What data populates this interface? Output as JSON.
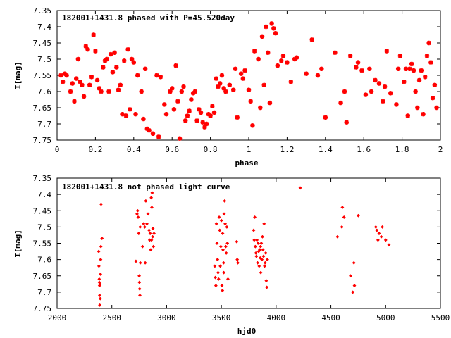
{
  "chart_data": [
    {
      "type": "scatter",
      "title": "182001+1431.8 phased with P=45.520day",
      "xlabel": "phase",
      "ylabel": "I[mag]",
      "xlim": [
        0,
        2
      ],
      "ylim": [
        7.35,
        7.75
      ],
      "y_inverted": true,
      "xticks": [
        "0",
        "0.2",
        "0.4",
        "0.6",
        "0.8",
        "1",
        "1.2",
        "1.4",
        "1.6",
        "1.8",
        "2"
      ],
      "yticks": [
        "7.35",
        "7.4",
        "7.45",
        "7.5",
        "7.55",
        "7.6",
        "7.65",
        "7.7",
        "7.75"
      ],
      "marker": "star",
      "marker_color": "#ff0000",
      "grid": false,
      "points": [
        [
          0.02,
          7.55
        ],
        [
          0.03,
          7.57
        ],
        [
          0.04,
          7.545
        ],
        [
          0.05,
          7.55
        ],
        [
          0.07,
          7.6
        ],
        [
          0.08,
          7.575
        ],
        [
          0.09,
          7.63
        ],
        [
          0.1,
          7.56
        ],
        [
          0.11,
          7.5
        ],
        [
          0.12,
          7.57
        ],
        [
          0.13,
          7.58
        ],
        [
          0.14,
          7.615
        ],
        [
          0.15,
          7.46
        ],
        [
          0.16,
          7.47
        ],
        [
          0.17,
          7.58
        ],
        [
          0.18,
          7.555
        ],
        [
          0.19,
          7.425
        ],
        [
          0.2,
          7.475
        ],
        [
          0.21,
          7.565
        ],
        [
          0.22,
          7.59
        ],
        [
          0.23,
          7.6
        ],
        [
          0.24,
          7.525
        ],
        [
          0.25,
          7.505
        ],
        [
          0.26,
          7.5
        ],
        [
          0.27,
          7.6
        ],
        [
          0.28,
          7.485
        ],
        [
          0.29,
          7.54
        ],
        [
          0.3,
          7.48
        ],
        [
          0.31,
          7.525
        ],
        [
          0.32,
          7.595
        ],
        [
          0.33,
          7.58
        ],
        [
          0.34,
          7.67
        ],
        [
          0.35,
          7.505
        ],
        [
          0.36,
          7.675
        ],
        [
          0.37,
          7.47
        ],
        [
          0.38,
          7.655
        ],
        [
          0.39,
          7.5
        ],
        [
          0.4,
          7.51
        ],
        [
          0.41,
          7.67
        ],
        [
          0.42,
          7.55
        ],
        [
          0.44,
          7.6
        ],
        [
          0.45,
          7.685
        ],
        [
          0.46,
          7.53
        ],
        [
          0.47,
          7.715
        ],
        [
          0.48,
          7.72
        ],
        [
          0.5,
          7.73
        ],
        [
          0.52,
          7.55
        ],
        [
          0.53,
          7.74
        ],
        [
          0.54,
          7.555
        ],
        [
          0.56,
          7.64
        ],
        [
          0.57,
          7.67
        ],
        [
          0.59,
          7.6
        ],
        [
          0.6,
          7.59
        ],
        [
          0.61,
          7.655
        ],
        [
          0.62,
          7.52
        ],
        [
          0.63,
          7.63
        ],
        [
          0.64,
          7.745
        ],
        [
          0.65,
          7.6
        ],
        [
          0.66,
          7.585
        ],
        [
          0.67,
          7.69
        ],
        [
          0.68,
          7.675
        ],
        [
          0.69,
          7.66
        ],
        [
          0.7,
          7.625
        ],
        [
          0.71,
          7.605
        ],
        [
          0.72,
          7.6
        ],
        [
          0.73,
          7.69
        ],
        [
          0.74,
          7.655
        ],
        [
          0.75,
          7.665
        ],
        [
          0.76,
          7.695
        ],
        [
          0.77,
          7.71
        ],
        [
          0.78,
          7.7
        ],
        [
          0.79,
          7.67
        ],
        [
          0.8,
          7.675
        ],
        [
          0.81,
          7.645
        ],
        [
          0.82,
          7.665
        ],
        [
          0.83,
          7.56
        ],
        [
          0.84,
          7.585
        ],
        [
          0.85,
          7.575
        ],
        [
          0.86,
          7.55
        ],
        [
          0.87,
          7.59
        ],
        [
          0.88,
          7.6
        ],
        [
          0.9,
          7.58
        ],
        [
          0.92,
          7.595
        ],
        [
          0.93,
          7.53
        ],
        [
          0.94,
          7.68
        ],
        [
          0.96,
          7.545
        ],
        [
          0.97,
          7.56
        ],
        [
          0.98,
          7.535
        ],
        [
          1.0,
          7.595
        ],
        [
          1.01,
          7.63
        ],
        [
          1.02,
          7.705
        ],
        [
          1.03,
          7.475
        ],
        [
          1.05,
          7.5
        ],
        [
          1.06,
          7.65
        ],
        [
          1.07,
          7.43
        ],
        [
          1.08,
          7.58
        ],
        [
          1.09,
          7.4
        ],
        [
          1.1,
          7.48
        ],
        [
          1.11,
          7.635
        ],
        [
          1.12,
          7.39
        ],
        [
          1.13,
          7.405
        ],
        [
          1.14,
          7.42
        ],
        [
          1.15,
          7.52
        ],
        [
          1.17,
          7.505
        ],
        [
          1.18,
          7.49
        ],
        [
          1.2,
          7.51
        ],
        [
          1.22,
          7.57
        ],
        [
          1.24,
          7.5
        ],
        [
          1.25,
          7.495
        ],
        [
          1.3,
          7.545
        ],
        [
          1.33,
          7.44
        ],
        [
          1.36,
          7.55
        ],
        [
          1.38,
          7.53
        ],
        [
          1.4,
          7.68
        ],
        [
          1.45,
          7.48
        ],
        [
          1.48,
          7.635
        ],
        [
          1.5,
          7.6
        ],
        [
          1.51,
          7.695
        ],
        [
          1.53,
          7.49
        ],
        [
          1.56,
          7.525
        ],
        [
          1.57,
          7.51
        ],
        [
          1.59,
          7.535
        ],
        [
          1.61,
          7.61
        ],
        [
          1.63,
          7.53
        ],
        [
          1.64,
          7.6
        ],
        [
          1.66,
          7.565
        ],
        [
          1.68,
          7.575
        ],
        [
          1.7,
          7.63
        ],
        [
          1.71,
          7.585
        ],
        [
          1.72,
          7.475
        ],
        [
          1.74,
          7.605
        ],
        [
          1.77,
          7.64
        ],
        [
          1.78,
          7.53
        ],
        [
          1.79,
          7.49
        ],
        [
          1.81,
          7.57
        ],
        [
          1.82,
          7.53
        ],
        [
          1.83,
          7.675
        ],
        [
          1.84,
          7.53
        ],
        [
          1.85,
          7.515
        ],
        [
          1.86,
          7.535
        ],
        [
          1.87,
          7.6
        ],
        [
          1.88,
          7.65
        ],
        [
          1.89,
          7.565
        ],
        [
          1.9,
          7.535
        ],
        [
          1.91,
          7.67
        ],
        [
          1.92,
          7.555
        ],
        [
          1.93,
          7.49
        ],
        [
          1.94,
          7.45
        ],
        [
          1.95,
          7.51
        ],
        [
          1.96,
          7.62
        ],
        [
          1.97,
          7.58
        ],
        [
          1.98,
          7.65
        ]
      ]
    },
    {
      "type": "scatter",
      "title": "182001+1431.8 not phased light curve",
      "xlabel": "hjd0",
      "ylabel": "I[mag]",
      "xlim": [
        2000,
        5500
      ],
      "ylim": [
        7.35,
        7.75
      ],
      "y_inverted": true,
      "xticks": [
        "2000",
        "2500",
        "3000",
        "3500",
        "4000",
        "4500",
        "5000",
        "5500"
      ],
      "yticks": [
        "7.35",
        "7.4",
        "7.45",
        "7.5",
        "7.55",
        "7.6",
        "7.65",
        "7.7",
        "7.75"
      ],
      "marker": "diamond",
      "marker_color": "#ff0000",
      "grid": false,
      "points": [
        [
          2380,
          7.575
        ],
        [
          2382,
          7.62
        ],
        [
          2385,
          7.66
        ],
        [
          2386,
          7.67
        ],
        [
          2388,
          7.68
        ],
        [
          2389,
          7.71
        ],
        [
          2390,
          7.74
        ],
        [
          2392,
          7.675
        ],
        [
          2394,
          7.72
        ],
        [
          2396,
          7.645
        ],
        [
          2398,
          7.6
        ],
        [
          2400,
          7.56
        ],
        [
          2402,
          7.43
        ],
        [
          2410,
          7.535
        ],
        [
          2720,
          7.605
        ],
        [
          2730,
          7.46
        ],
        [
          2735,
          7.45
        ],
        [
          2740,
          7.47
        ],
        [
          2745,
          7.52
        ],
        [
          2750,
          7.65
        ],
        [
          2752,
          7.67
        ],
        [
          2754,
          7.69
        ],
        [
          2756,
          7.71
        ],
        [
          2758,
          7.5
        ],
        [
          2760,
          7.61
        ],
        [
          2780,
          7.56
        ],
        [
          2790,
          7.49
        ],
        [
          2800,
          7.5
        ],
        [
          2805,
          7.61
        ],
        [
          2810,
          7.42
        ],
        [
          2820,
          7.49
        ],
        [
          2830,
          7.46
        ],
        [
          2840,
          7.51
        ],
        [
          2845,
          7.54
        ],
        [
          2850,
          7.52
        ],
        [
          2855,
          7.57
        ],
        [
          2860,
          7.41
        ],
        [
          2862,
          7.54
        ],
        [
          2865,
          7.44
        ],
        [
          2868,
          7.395
        ],
        [
          2872,
          7.53
        ],
        [
          2875,
          7.505
        ],
        [
          2880,
          7.56
        ],
        [
          2885,
          7.52
        ],
        [
          3440,
          7.62
        ],
        [
          3445,
          7.655
        ],
        [
          3450,
          7.68
        ],
        [
          3455,
          7.49
        ],
        [
          3460,
          7.55
        ],
        [
          3465,
          7.6
        ],
        [
          3470,
          7.64
        ],
        [
          3475,
          7.66
        ],
        [
          3480,
          7.47
        ],
        [
          3485,
          7.51
        ],
        [
          3490,
          7.62
        ],
        [
          3495,
          7.56
        ],
        [
          3500,
          7.48
        ],
        [
          3505,
          7.68
        ],
        [
          3510,
          7.695
        ],
        [
          3512,
          7.52
        ],
        [
          3515,
          7.57
        ],
        [
          3520,
          7.61
        ],
        [
          3522,
          7.64
        ],
        [
          3525,
          7.46
        ],
        [
          3530,
          7.42
        ],
        [
          3535,
          7.49
        ],
        [
          3540,
          7.56
        ],
        [
          3545,
          7.58
        ],
        [
          3550,
          7.5
        ],
        [
          3555,
          7.55
        ],
        [
          3560,
          7.66
        ],
        [
          3640,
          7.545
        ],
        [
          3645,
          7.6
        ],
        [
          3650,
          7.61
        ],
        [
          3795,
          7.51
        ],
        [
          3800,
          7.54
        ],
        [
          3805,
          7.47
        ],
        [
          3810,
          7.56
        ],
        [
          3815,
          7.58
        ],
        [
          3820,
          7.59
        ],
        [
          3825,
          7.54
        ],
        [
          3830,
          7.61
        ],
        [
          3835,
          7.55
        ],
        [
          3840,
          7.575
        ],
        [
          3845,
          7.62
        ],
        [
          3850,
          7.57
        ],
        [
          3855,
          7.595
        ],
        [
          3858,
          7.56
        ],
        [
          3860,
          7.64
        ],
        [
          3865,
          7.55
        ],
        [
          3870,
          7.6
        ],
        [
          3875,
          7.53
        ],
        [
          3880,
          7.57
        ],
        [
          3885,
          7.59
        ],
        [
          3890,
          7.49
        ],
        [
          3895,
          7.62
        ],
        [
          3900,
          7.61
        ],
        [
          3905,
          7.58
        ],
        [
          3910,
          7.665
        ],
        [
          3915,
          7.685
        ],
        [
          3920,
          7.6
        ],
        [
          4220,
          7.38
        ],
        [
          4560,
          7.53
        ],
        [
          4600,
          7.5
        ],
        [
          4605,
          7.44
        ],
        [
          4620,
          7.47
        ],
        [
          4680,
          7.65
        ],
        [
          4700,
          7.7
        ],
        [
          4710,
          7.61
        ],
        [
          4715,
          7.68
        ],
        [
          4750,
          7.465
        ],
        [
          4910,
          7.5
        ],
        [
          4920,
          7.51
        ],
        [
          4930,
          7.54
        ],
        [
          4940,
          7.52
        ],
        [
          4960,
          7.53
        ],
        [
          4970,
          7.5
        ],
        [
          5000,
          7.54
        ],
        [
          5030,
          7.555
        ]
      ]
    }
  ]
}
